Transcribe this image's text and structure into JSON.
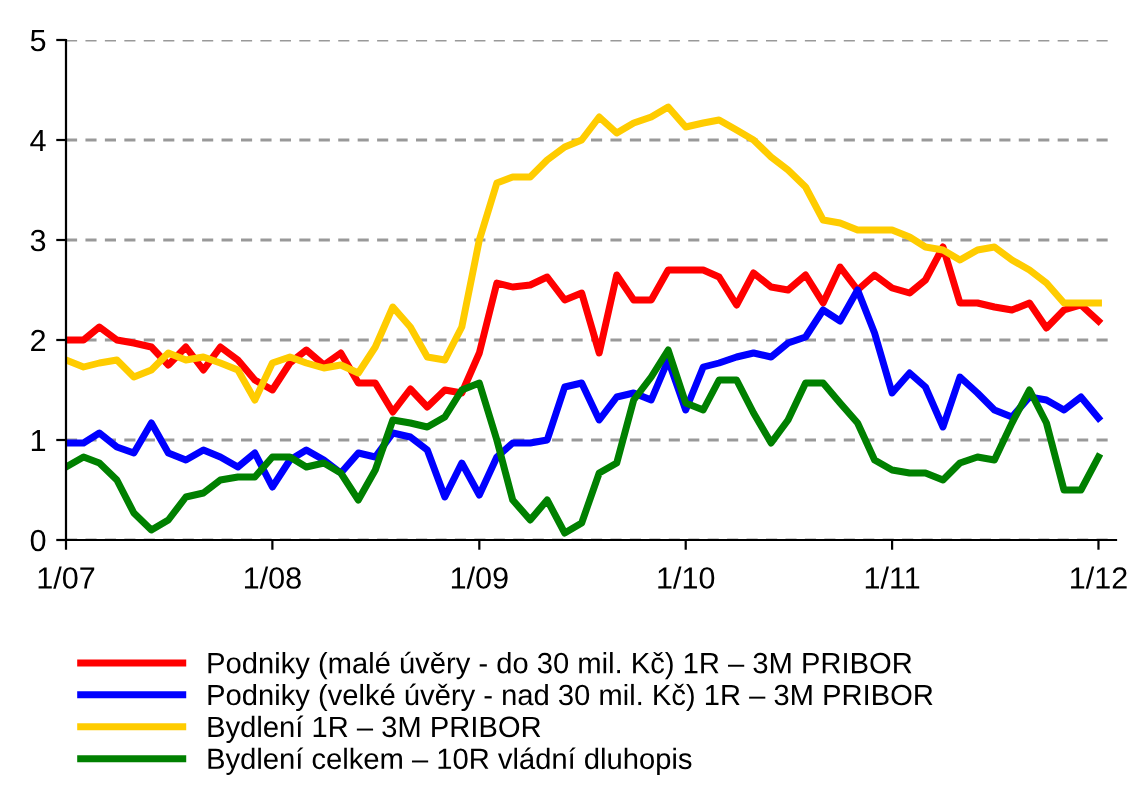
{
  "chart_data": {
    "type": "line",
    "x": [
      "2007-01",
      "2007-02",
      "2007-03",
      "2007-04",
      "2007-05",
      "2007-06",
      "2007-07",
      "2007-08",
      "2007-09",
      "2007-10",
      "2007-11",
      "2007-12",
      "2008-01",
      "2008-02",
      "2008-03",
      "2008-04",
      "2008-05",
      "2008-06",
      "2008-07",
      "2008-08",
      "2008-09",
      "2008-10",
      "2008-11",
      "2008-12",
      "2009-01",
      "2009-02",
      "2009-03",
      "2009-04",
      "2009-05",
      "2009-06",
      "2009-07",
      "2009-08",
      "2009-09",
      "2009-10",
      "2009-11",
      "2009-12",
      "2010-01",
      "2010-02",
      "2010-03",
      "2010-04",
      "2010-05",
      "2010-06",
      "2010-07",
      "2010-08",
      "2010-09",
      "2010-10",
      "2010-11",
      "2010-12",
      "2011-01",
      "2011-02",
      "2011-03",
      "2011-04",
      "2011-05",
      "2011-06",
      "2011-07",
      "2011-08",
      "2011-09",
      "2011-10",
      "2011-11",
      "2011-12",
      "2012-01"
    ],
    "series": [
      {
        "name": "Podniky (malé úvěry - do 30 mil. Kč) 1R – 3M PRIBOR",
        "color": "#ff0000",
        "values": [
          2.0,
          2.0,
          2.13,
          2.0,
          1.97,
          1.93,
          1.75,
          1.93,
          1.7,
          1.93,
          1.8,
          1.6,
          1.5,
          1.77,
          1.9,
          1.75,
          1.87,
          1.57,
          1.57,
          1.28,
          1.51,
          1.33,
          1.5,
          1.47,
          1.87,
          2.57,
          2.53,
          2.55,
          2.63,
          2.4,
          2.47,
          1.87,
          2.65,
          2.4,
          2.4,
          2.7,
          2.7,
          2.7,
          2.63,
          2.35,
          2.67,
          2.53,
          2.5,
          2.65,
          2.37,
          2.73,
          2.5,
          2.65,
          2.52,
          2.47,
          2.6,
          2.93,
          2.37,
          2.37,
          2.33,
          2.3,
          2.37,
          2.12,
          2.3,
          2.35,
          2.19
        ]
      },
      {
        "name": "Podniky (velké úvěry - nad 30 mil. Kč) 1R – 3M PRIBOR",
        "color": "#0000ff",
        "values": [
          0.97,
          0.97,
          1.07,
          0.93,
          0.87,
          1.17,
          0.87,
          0.8,
          0.9,
          0.83,
          0.73,
          0.87,
          0.53,
          0.8,
          0.9,
          0.8,
          0.67,
          0.87,
          0.83,
          1.07,
          1.03,
          0.9,
          0.43,
          0.77,
          0.45,
          0.83,
          0.97,
          0.97,
          1.0,
          1.53,
          1.57,
          1.2,
          1.43,
          1.47,
          1.4,
          1.8,
          1.3,
          1.73,
          1.77,
          1.83,
          1.87,
          1.83,
          1.97,
          2.03,
          2.3,
          2.19,
          2.5,
          2.07,
          1.47,
          1.67,
          1.53,
          1.13,
          1.63,
          1.47,
          1.3,
          1.23,
          1.43,
          1.4,
          1.3,
          1.43,
          1.22
        ]
      },
      {
        "name": "Bydlení 1R – 3M PRIBOR",
        "color": "#ffcc00",
        "values": [
          1.8,
          1.73,
          1.77,
          1.8,
          1.63,
          1.7,
          1.87,
          1.8,
          1.83,
          1.77,
          1.7,
          1.4,
          1.77,
          1.83,
          1.77,
          1.72,
          1.75,
          1.67,
          1.93,
          2.33,
          2.13,
          1.83,
          1.8,
          2.13,
          3.0,
          3.57,
          3.63,
          3.63,
          3.8,
          3.93,
          4.0,
          4.23,
          4.07,
          4.17,
          4.23,
          4.33,
          4.13,
          4.17,
          4.2,
          4.1,
          4.0,
          3.83,
          3.7,
          3.53,
          3.2,
          3.17,
          3.1,
          3.1,
          3.1,
          3.03,
          2.93,
          2.9,
          2.8,
          2.9,
          2.93,
          2.8,
          2.7,
          2.57,
          2.37,
          2.37,
          2.37
        ]
      },
      {
        "name": "Bydlení celkem – 10R vládní dluhopis",
        "color": "#008000",
        "values": [
          0.73,
          0.83,
          0.77,
          0.6,
          0.27,
          0.1,
          0.2,
          0.43,
          0.47,
          0.6,
          0.63,
          0.63,
          0.83,
          0.83,
          0.73,
          0.77,
          0.67,
          0.4,
          0.7,
          1.2,
          1.17,
          1.13,
          1.23,
          1.5,
          1.57,
          1.0,
          0.4,
          0.2,
          0.4,
          0.07,
          0.17,
          0.67,
          0.77,
          1.4,
          1.63,
          1.9,
          1.37,
          1.3,
          1.6,
          1.6,
          1.27,
          0.97,
          1.2,
          1.57,
          1.57,
          1.37,
          1.17,
          0.8,
          0.7,
          0.67,
          0.67,
          0.6,
          0.77,
          0.83,
          0.8,
          1.17,
          1.5,
          1.17,
          0.5,
          0.5,
          0.83
        ]
      }
    ],
    "xlim": [
      "2007-01",
      "2012-02"
    ],
    "xticks": [
      {
        "value": "2007-01",
        "label": "1/07"
      },
      {
        "value": "2008-01",
        "label": "1/08"
      },
      {
        "value": "2009-01",
        "label": "1/09"
      },
      {
        "value": "2010-01",
        "label": "1/10"
      },
      {
        "value": "2011-01",
        "label": "1/11"
      },
      {
        "value": "2012-01",
        "label": "1/12"
      }
    ],
    "ylim": [
      0,
      5
    ],
    "yticks": [
      0,
      1,
      2,
      3,
      4,
      5
    ],
    "grid": "y",
    "legend": "bottom",
    "marker": "none",
    "line_style": "solid"
  }
}
